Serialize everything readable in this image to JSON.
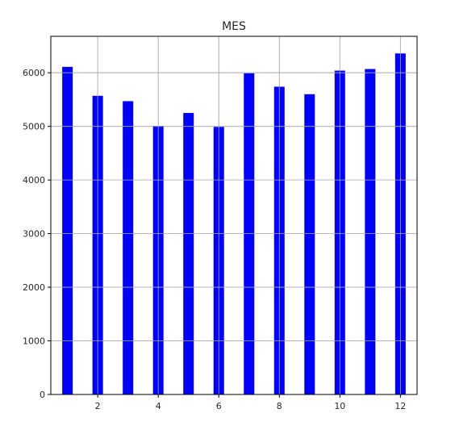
{
  "chart_data": {
    "type": "bar",
    "title": "MES",
    "xlabel": "",
    "ylabel": "",
    "x": [
      1,
      2,
      3,
      4,
      5,
      6,
      7,
      8,
      9,
      10,
      11,
      12
    ],
    "values": [
      6110,
      5570,
      5470,
      5010,
      5250,
      4990,
      5990,
      5740,
      5600,
      6040,
      6070,
      6360
    ],
    "xlim": [
      0.45,
      12.55
    ],
    "ylim": [
      0,
      6680
    ],
    "xticks": [
      2,
      4,
      6,
      8,
      10,
      12
    ],
    "yticks": [
      0,
      1000,
      2000,
      3000,
      4000,
      5000,
      6000
    ],
    "grid": true,
    "bar_color": "#0000ff",
    "grid_color": "#b0b0b0"
  }
}
